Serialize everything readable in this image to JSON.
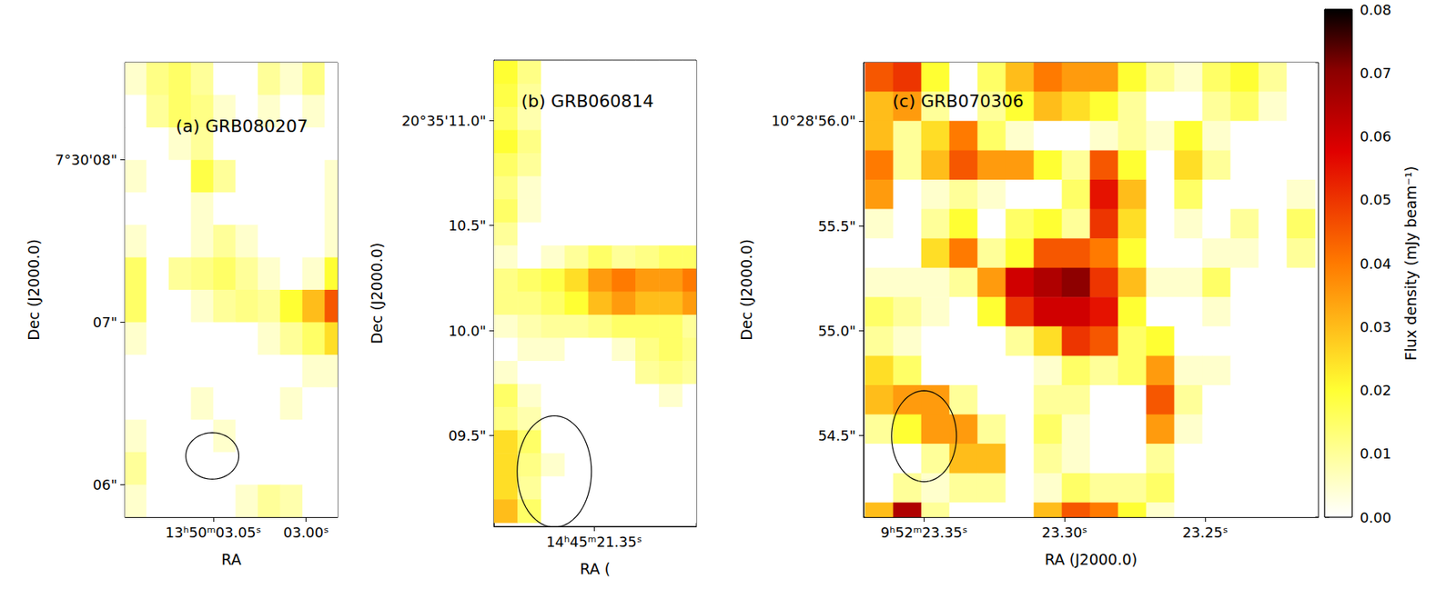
{
  "chart_data": [
    {
      "type": "heatmap",
      "title": "(a) GRB080207",
      "x_label": "RA",
      "y_label": "Dec (J2000.0)",
      "xlim": [
        3.0975,
        2.983
      ],
      "xticks": [
        {
          "value": 3.05,
          "label": "13ʰ50ᵐ03.05ˢ"
        },
        {
          "value": 3.0,
          "label": "03.00ˢ"
        }
      ],
      "ylim": [
        5.8,
        8.6
      ],
      "yticks": [
        {
          "value": 6,
          "label": "06\""
        },
        {
          "value": 7,
          "label": "07\""
        },
        {
          "value": 8,
          "label": "7°30'08\""
        }
      ],
      "grid": false,
      "cells": {
        "x": [
          3.092,
          3.08,
          3.068,
          3.056,
          3.044,
          3.032,
          3.02,
          3.008,
          2.996,
          2.984
        ],
        "y": [
          8.5,
          8.3,
          8.1,
          7.9,
          7.7,
          7.5,
          7.3,
          7.1,
          6.9,
          6.7,
          6.5,
          6.3,
          6.1,
          5.9
        ],
        "values": [
          [
            0.005,
            0.012,
            0.015,
            0.01,
            0,
            0,
            0.01,
            0.005,
            0.012,
            0
          ],
          [
            0,
            0.01,
            0.015,
            0.012,
            0.005,
            0,
            0.005,
            0,
            0.005,
            0
          ],
          [
            0,
            0,
            0.005,
            0.01,
            0,
            0,
            0,
            0,
            0,
            0
          ],
          [
            0.005,
            0,
            0,
            0.018,
            0.01,
            0,
            0,
            0,
            0,
            0.005
          ],
          [
            0,
            0,
            0,
            0.005,
            0,
            0,
            0,
            0,
            0,
            0.005
          ],
          [
            0.005,
            0,
            0,
            0.005,
            0.01,
            0.005,
            0,
            0,
            0,
            0.005
          ],
          [
            0.015,
            0,
            0.01,
            0.012,
            0.015,
            0.01,
            0.005,
            0,
            0.005,
            0.02
          ],
          [
            0.015,
            0,
            0,
            0.005,
            0.01,
            0.012,
            0.01,
            0.02,
            0.03,
            0.045
          ],
          [
            0.005,
            0,
            0,
            0,
            0,
            0,
            0.005,
            0.01,
            0.015,
            0.025
          ],
          [
            0,
            0,
            0,
            0,
            0,
            0,
            0,
            0,
            0.005,
            0.005
          ],
          [
            0,
            0,
            0,
            0.005,
            0,
            0,
            0,
            0.005,
            0,
            0
          ],
          [
            0.005,
            0,
            0,
            0,
            0.005,
            0,
            0,
            0,
            0,
            0
          ],
          [
            0.01,
            0,
            0,
            0,
            0,
            0,
            0,
            0,
            0,
            0
          ],
          [
            0.005,
            0,
            0,
            0,
            0,
            0.005,
            0.01,
            0.008,
            0,
            0
          ]
        ]
      },
      "beam": {
        "x": 3.0505,
        "y": 6.177,
        "width": 0.0285,
        "height": 0.286
      }
    },
    {
      "type": "heatmap",
      "title": "(b) GRB060814",
      "x_label": "RA (",
      "y_label": "Dec (J2000.0)",
      "xlim": [
        21.384,
        21.3153
      ],
      "xticks": [
        {
          "value": 21.35,
          "label": "14ʰ45ᵐ21.35ˢ"
        }
      ],
      "ylim": [
        9.066,
        11.288
      ],
      "yticks": [
        {
          "value": 9.5,
          "label": "09.5\""
        },
        {
          "value": 10,
          "label": "10.0\""
        },
        {
          "value": 10.5,
          "label": "10.5\""
        },
        {
          "value": 11,
          "label": "20°35'11.0\""
        }
      ],
      "grid": false,
      "cells": {
        "x": [
          21.38,
          21.372,
          21.364,
          21.356,
          21.348,
          21.34,
          21.332,
          21.324,
          21.316
        ],
        "y": [
          11.23,
          11.12,
          11.01,
          10.9,
          10.79,
          10.68,
          10.57,
          10.46,
          10.35,
          10.24,
          10.13,
          10.02,
          9.91,
          9.8,
          9.69,
          9.58,
          9.47,
          9.36,
          9.25,
          9.14
        ],
        "values": [
          [
            0.02,
            0.012,
            0,
            0,
            0,
            0,
            0,
            0,
            0
          ],
          [
            0.018,
            0.01,
            0,
            0,
            0,
            0,
            0,
            0,
            0
          ],
          [
            0.015,
            0.008,
            0,
            0,
            0,
            0,
            0,
            0,
            0
          ],
          [
            0.02,
            0.012,
            0,
            0,
            0,
            0,
            0,
            0,
            0
          ],
          [
            0.015,
            0.01,
            0,
            0,
            0,
            0,
            0,
            0,
            0
          ],
          [
            0.012,
            0.005,
            0,
            0,
            0,
            0,
            0,
            0,
            0
          ],
          [
            0.015,
            0.005,
            0,
            0,
            0,
            0,
            0,
            0,
            0
          ],
          [
            0.01,
            0,
            0,
            0,
            0,
            0,
            0,
            0,
            0
          ],
          [
            0.005,
            0,
            0.005,
            0.01,
            0.015,
            0.01,
            0.012,
            0.015,
            0.015
          ],
          [
            0.012,
            0.015,
            0.018,
            0.025,
            0.035,
            0.04,
            0.035,
            0.035,
            0.04
          ],
          [
            0.012,
            0.012,
            0.015,
            0.02,
            0.03,
            0.035,
            0.03,
            0.03,
            0.035
          ],
          [
            0.005,
            0.008,
            0.01,
            0.01,
            0.012,
            0.015,
            0.015,
            0.015,
            0.01
          ],
          [
            0,
            0.005,
            0.005,
            0,
            0,
            0.005,
            0.012,
            0.015,
            0.012
          ],
          [
            0.005,
            0,
            0,
            0,
            0,
            0,
            0.01,
            0.012,
            0.01
          ],
          [
            0.015,
            0.005,
            0,
            0,
            0,
            0,
            0,
            0.005,
            0
          ],
          [
            0.012,
            0.008,
            0,
            0,
            0,
            0,
            0,
            0,
            0
          ],
          [
            0.025,
            0.015,
            0,
            0,
            0,
            0,
            0,
            0,
            0
          ],
          [
            0.025,
            0.012,
            0.005,
            0,
            0,
            0,
            0,
            0,
            0
          ],
          [
            0.025,
            0.01,
            0,
            0,
            0,
            0,
            0,
            0,
            0
          ],
          [
            0.03,
            0.015,
            0,
            0,
            0,
            0,
            0,
            0,
            0
          ]
        ]
      },
      "beam": {
        "x": 21.3635,
        "y": 9.328,
        "width": 0.0252,
        "height": 0.531
      }
    },
    {
      "type": "heatmap",
      "title": "(c) GRB070306",
      "x_label": "RA (J2000.0)",
      "y_label": "Dec (J2000.0)",
      "xlim": [
        23.3715,
        23.2097
      ],
      "xticks": [
        {
          "value": 23.35,
          "label": "9ʰ52ᵐ23.35ˢ"
        },
        {
          "value": 23.3,
          "label": "23.30ˢ"
        },
        {
          "value": 23.25,
          "label": "23.25ˢ"
        }
      ],
      "ylim": [
        54.11,
        56.279
      ],
      "yticks": [
        {
          "value": 54.5,
          "label": "54.5\""
        },
        {
          "value": 55,
          "label": "55.0\""
        },
        {
          "value": 55.5,
          "label": "55.5\""
        },
        {
          "value": 56,
          "label": "10°28'56.0\""
        }
      ],
      "grid": false,
      "cells": {
        "x": [
          23.366,
          23.356,
          23.346,
          23.336,
          23.326,
          23.316,
          23.306,
          23.296,
          23.286,
          23.276,
          23.266,
          23.256,
          23.246,
          23.236,
          23.226,
          23.216
        ],
        "y": [
          56.21,
          56.07,
          55.93,
          55.79,
          55.65,
          55.51,
          55.37,
          55.23,
          55.09,
          54.95,
          54.81,
          54.67,
          54.53,
          54.39,
          54.25,
          54.11
        ],
        "values": [
          [
            0.045,
            0.05,
            0.02,
            0,
            0.015,
            0.03,
            0.04,
            0.035,
            0.035,
            0.02,
            0.01,
            0.005,
            0.015,
            0.02,
            0.01,
            0
          ],
          [
            0.03,
            0.035,
            0.01,
            0,
            0.01,
            0.02,
            0.03,
            0.025,
            0.02,
            0.01,
            0,
            0,
            0.01,
            0.015,
            0.005,
            0
          ],
          [
            0.03,
            0.01,
            0.025,
            0.04,
            0.015,
            0.005,
            0,
            0,
            0.005,
            0.01,
            0.005,
            0.02,
            0.005,
            0,
            0,
            0
          ],
          [
            0.04,
            0.01,
            0.03,
            0.045,
            0.035,
            0.035,
            0.02,
            0.01,
            0.045,
            0.02,
            0,
            0.025,
            0.01,
            0,
            0,
            0
          ],
          [
            0.035,
            0,
            0.005,
            0.01,
            0.005,
            0,
            0,
            0.015,
            0.055,
            0.03,
            0,
            0.015,
            0,
            0,
            0,
            0.005
          ],
          [
            0.005,
            0,
            0.01,
            0.02,
            0,
            0.015,
            0.02,
            0.01,
            0.05,
            0.025,
            0,
            0.005,
            0,
            0.01,
            0,
            0.015
          ],
          [
            0,
            0,
            0.025,
            0.04,
            0.01,
            0.02,
            0.045,
            0.045,
            0.04,
            0.02,
            0,
            0,
            0.005,
            0.005,
            0,
            0.01
          ],
          [
            0.005,
            0.005,
            0.005,
            0.01,
            0.035,
            0.06,
            0.065,
            0.07,
            0.05,
            0.03,
            0.005,
            0.005,
            0.015,
            0,
            0,
            0
          ],
          [
            0.015,
            0.01,
            0.005,
            0,
            0.02,
            0.05,
            0.06,
            0.06,
            0.055,
            0.02,
            0,
            0,
            0.005,
            0,
            0,
            0
          ],
          [
            0.01,
            0.005,
            0,
            0,
            0,
            0.01,
            0.025,
            0.05,
            0.045,
            0.015,
            0.02,
            0,
            0,
            0,
            0,
            0
          ],
          [
            0.025,
            0.015,
            0,
            0,
            0,
            0,
            0.005,
            0.015,
            0.01,
            0.015,
            0.035,
            0.005,
            0.005,
            0,
            0,
            0
          ],
          [
            0.03,
            0.035,
            0.035,
            0.01,
            0,
            0,
            0.01,
            0.01,
            0,
            0,
            0.045,
            0.01,
            0,
            0,
            0,
            0
          ],
          [
            0.01,
            0.02,
            0.035,
            0.035,
            0.01,
            0,
            0.015,
            0.005,
            0,
            0,
            0.035,
            0.005,
            0,
            0,
            0,
            0
          ],
          [
            0,
            0,
            0.01,
            0.03,
            0.03,
            0,
            0.01,
            0.005,
            0,
            0,
            0.01,
            0,
            0,
            0,
            0,
            0
          ],
          [
            0,
            0.01,
            0.005,
            0.01,
            0.01,
            0,
            0.005,
            0.015,
            0.01,
            0.01,
            0.015,
            0,
            0,
            0,
            0,
            0
          ],
          [
            0.03,
            0.065,
            0.01,
            0,
            0,
            0,
            0.03,
            0.045,
            0.04,
            0.02,
            0.005,
            0,
            0,
            0,
            0,
            0
          ]
        ]
      },
      "beam": {
        "x": 23.35,
        "y": 54.496,
        "width": 0.0231,
        "height": 0.434
      }
    }
  ],
  "colorbar": {
    "label": "Flux density (mJy beam⁻¹)",
    "range": [
      0,
      0.08
    ],
    "ticks": [
      {
        "value": 0,
        "label": "0.00"
      },
      {
        "value": 0.01,
        "label": "0.01"
      },
      {
        "value": 0.02,
        "label": "0.02"
      },
      {
        "value": 0.03,
        "label": "0.03"
      },
      {
        "value": 0.04,
        "label": "0.04"
      },
      {
        "value": 0.05,
        "label": "0.05"
      },
      {
        "value": 0.06,
        "label": "0.06"
      },
      {
        "value": 0.07,
        "label": "0.07"
      },
      {
        "value": 0.08,
        "label": "0.08"
      }
    ]
  }
}
